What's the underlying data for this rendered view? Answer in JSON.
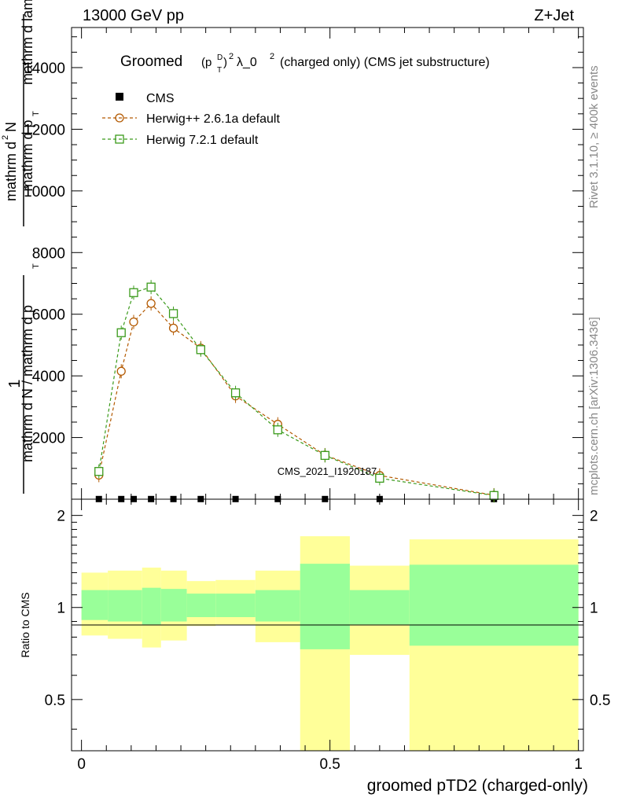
{
  "header": {
    "energy": "13000 GeV pp",
    "process": "Z+Jet",
    "title_main": "Groomed",
    "title_rest": "λ_0",
    "title_suffix": "(charged only) (CMS jet substructure)",
    "title_p": "(p",
    "title_sup_d": "D",
    "title_sub_t": "T",
    "title_close": ")",
    "title_exp2": "2",
    "title_exp2b": "2"
  },
  "side_labels": {
    "rivet": "Rivet 3.1.10, ≥ 400k events",
    "mcplots": "mcplots.cern.ch [arXiv:1306.3436]"
  },
  "watermark": "CMS_2021_I1920187",
  "colors": {
    "herwig_pp": "#b35900",
    "herwig_7": "#3a9a1a",
    "band_inner": "#99ff99",
    "band_outer": "#ffff99"
  },
  "legend": {
    "cms": "CMS",
    "herwig_pp": "Herwig++ 2.6.1a default",
    "herwig_7": "Herwig 7.2.1 default"
  },
  "chart_data": [
    {
      "type": "line",
      "ylabel_pieces": [
        "1",
        "mathrm d N / mathrm d p",
        "T",
        "mathrm d p",
        "T",
        "mathrm d lambda",
        "mathrm d",
        "2",
        "N"
      ],
      "xlim": [
        -0.02,
        1.01
      ],
      "ylim": [
        0,
        15300
      ],
      "yticks": [
        2000,
        4000,
        6000,
        8000,
        10000,
        12000,
        14000
      ],
      "ytick_labels": [
        "2000",
        "4000",
        "6000",
        "8000",
        "10000",
        "12000",
        "14000"
      ],
      "x": [
        0.035,
        0.08,
        0.105,
        0.14,
        0.185,
        0.24,
        0.31,
        0.395,
        0.49,
        0.6,
        0.83
      ],
      "series": [
        {
          "name": "CMS",
          "values": [
            5,
            5,
            5,
            5,
            5,
            5,
            5,
            5,
            5,
            5,
            5
          ]
        },
        {
          "name": "Herwig++ 2.6.1a default",
          "values": [
            780,
            4150,
            5750,
            6350,
            5550,
            4900,
            3350,
            2430,
            1430,
            770,
            130
          ]
        },
        {
          "name": "Herwig 7.2.1 default",
          "values": [
            900,
            5400,
            6700,
            6880,
            6020,
            4850,
            3450,
            2250,
            1420,
            680,
            120
          ]
        }
      ]
    },
    {
      "type": "area",
      "ylabel": "Ratio to CMS",
      "xlabel": "groomed pTD2 (charged-only)",
      "xlim": [
        -0.02,
        1.01
      ],
      "ylim": [
        0.34,
        2.26
      ],
      "yticks": [
        0.5,
        1,
        2
      ],
      "ytick_labels": [
        "0.5",
        "1",
        "2"
      ],
      "xticks": [
        0,
        0.5,
        1
      ],
      "xtick_labels": [
        "0",
        "0.5",
        "1"
      ],
      "bins": [
        {
          "x0": 0.0,
          "x1": 0.053,
          "inner": [
            0.91,
            1.14
          ],
          "outer": [
            0.81,
            1.3
          ]
        },
        {
          "x0": 0.053,
          "x1": 0.122,
          "inner": [
            0.9,
            1.14
          ],
          "outer": [
            0.79,
            1.32
          ]
        },
        {
          "x0": 0.122,
          "x1": 0.16,
          "inner": [
            0.88,
            1.16
          ],
          "outer": [
            0.74,
            1.35
          ]
        },
        {
          "x0": 0.16,
          "x1": 0.212,
          "inner": [
            0.9,
            1.15
          ],
          "outer": [
            0.78,
            1.32
          ]
        },
        {
          "x0": 0.212,
          "x1": 0.27,
          "inner": [
            0.93,
            1.11
          ],
          "outer": [
            0.87,
            1.22
          ]
        },
        {
          "x0": 0.27,
          "x1": 0.35,
          "inner": [
            0.93,
            1.11
          ],
          "outer": [
            0.88,
            1.23
          ]
        },
        {
          "x0": 0.35,
          "x1": 0.44,
          "inner": [
            0.9,
            1.14
          ],
          "outer": [
            0.77,
            1.32
          ]
        },
        {
          "x0": 0.44,
          "x1": 0.54,
          "inner": [
            0.73,
            1.39
          ],
          "outer": [
            0.34,
            1.71
          ]
        },
        {
          "x0": 0.54,
          "x1": 0.66,
          "inner": [
            0.88,
            1.14
          ],
          "outer": [
            0.7,
            1.37
          ]
        },
        {
          "x0": 0.66,
          "x1": 1.0,
          "inner": [
            0.75,
            1.38
          ],
          "outer": [
            0.34,
            1.67
          ]
        }
      ]
    }
  ]
}
